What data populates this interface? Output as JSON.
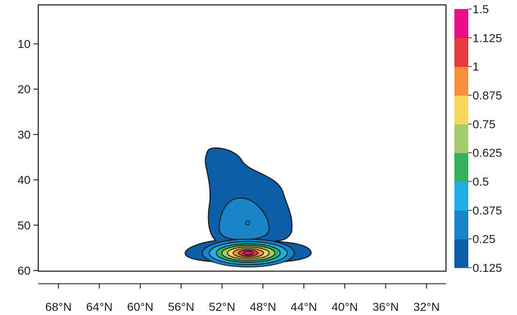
{
  "chart_data": {
    "type": "contour",
    "title": "",
    "xlabel": "",
    "ylabel": "",
    "x_ticks": [
      "68°N",
      "64°N",
      "60°N",
      "56°N",
      "52°N",
      "48°N",
      "44°N",
      "40°N",
      "36°N",
      "32°N"
    ],
    "x_tick_values": [
      68,
      64,
      60,
      56,
      52,
      48,
      44,
      40,
      36,
      32
    ],
    "xlim": [
      70,
      31
    ],
    "y_ticks": [
      "10",
      "20",
      "30",
      "40",
      "50",
      "60"
    ],
    "y_tick_values": [
      10,
      20,
      30,
      40,
      50,
      60
    ],
    "ylim": [
      0,
      60
    ],
    "y_inverted": true,
    "levels": [
      0.125,
      0.25,
      0.375,
      0.5,
      0.625,
      0.75,
      0.875,
      1,
      1.125,
      1.5
    ],
    "level_labels": [
      "0.125",
      "0.25",
      "0.375",
      "0.5",
      "0.625",
      "0.75",
      "0.875",
      "1",
      "1.125",
      "1.5"
    ],
    "level_colors": [
      "#0c5ea8",
      "#1a84c8",
      "#1faee5",
      "#33b15c",
      "#a3cd6c",
      "#fcd55c",
      "#f6913f",
      "#e83a3b",
      "#ea0f88"
    ],
    "field": {
      "peak_value": 1.5,
      "peak_location": {
        "x": 49.5,
        "y": 56
      },
      "secondary_center": {
        "x": 49.5,
        "y": 49.5
      },
      "region_over_threshold_0_125": {
        "x_range": [
          53.5,
          45
        ],
        "y_range": [
          33,
          60
        ]
      }
    },
    "grid": false,
    "colorbar_position": "right"
  }
}
